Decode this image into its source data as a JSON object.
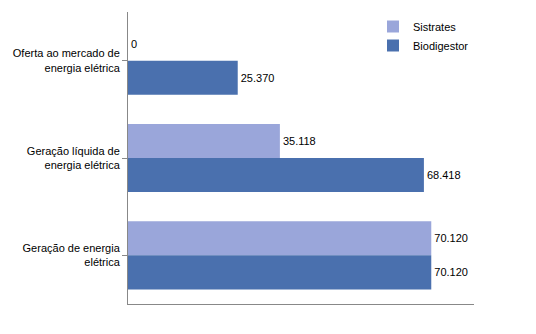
{
  "chart_data": {
    "type": "bar",
    "orientation": "horizontal",
    "categories": [
      "Oferta ao mercado de energia elétrica",
      "Geração líquida de energia elétrica",
      "Geração de energia elétrica"
    ],
    "series": [
      {
        "name": "Sistrates",
        "color": "#9aa6da",
        "values": [
          0,
          35118,
          70120
        ],
        "value_labels": [
          "0",
          "35.118",
          "70.120"
        ]
      },
      {
        "name": "Biodigestor",
        "color": "#4a70ae",
        "values": [
          25370,
          68418,
          70120
        ],
        "value_labels": [
          "25.370",
          "68.418",
          "70.120"
        ]
      }
    ],
    "xlim": [
      0,
      80000
    ],
    "grid": false,
    "legend": "top right",
    "data_labels": true,
    "tick_labels": "y"
  }
}
